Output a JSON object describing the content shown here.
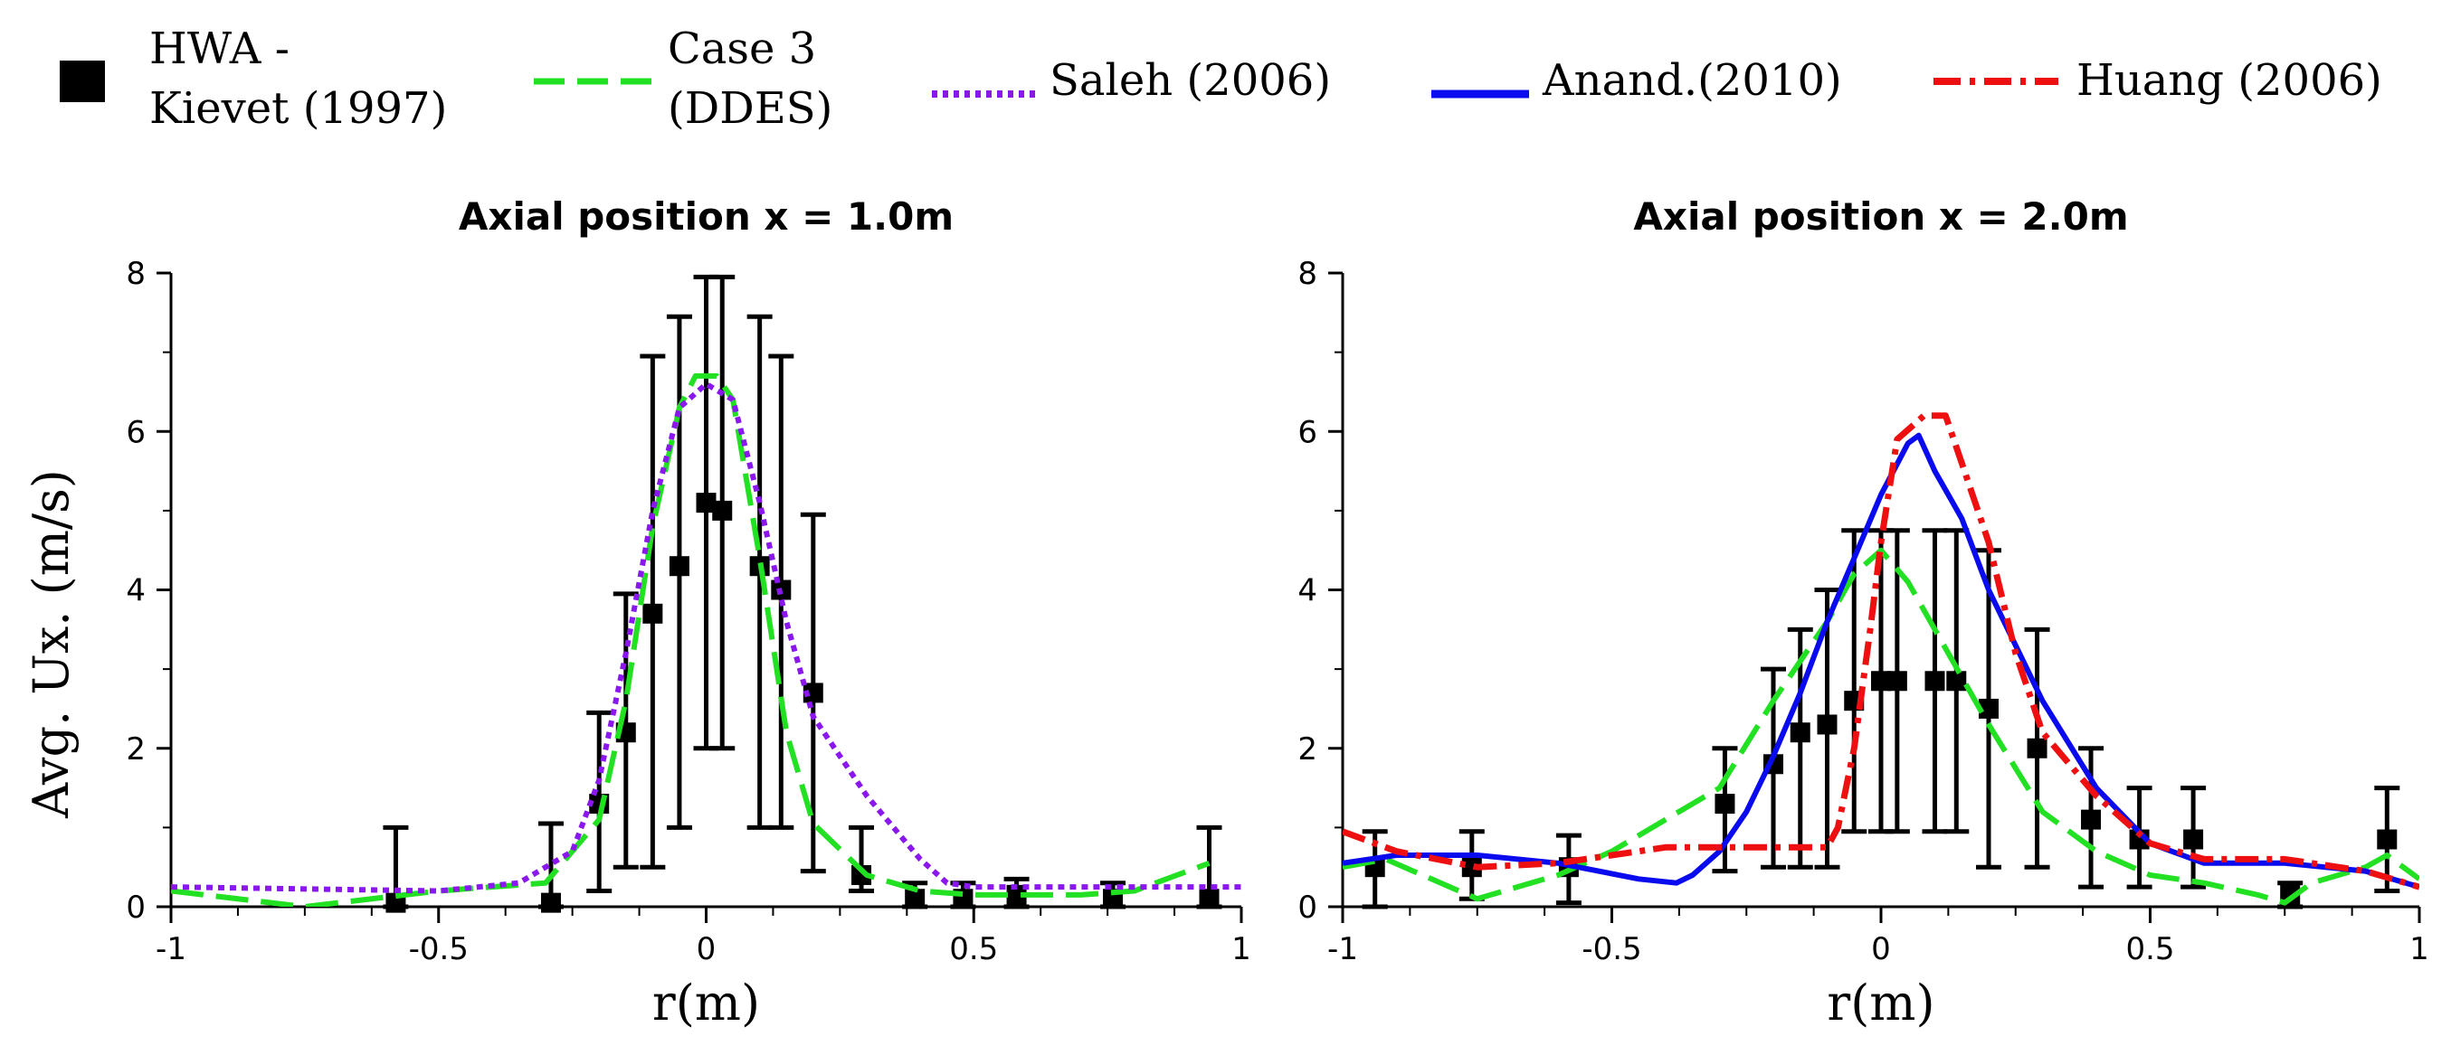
{
  "legend": {
    "hwa_line1": "HWA -",
    "hwa_line2": "Kievet (1997)",
    "case3_line1": "Case 3",
    "case3_line2": "(DDES)",
    "saleh": "Saleh (2006)",
    "anand": "Anand.(2010)",
    "huang": "Huang (2006)"
  },
  "colors": {
    "hwa": "#000000",
    "case3": "#22e022",
    "saleh": "#8a18ee",
    "anand": "#0a0aee",
    "huang": "#ee1010"
  },
  "ylabel": "Avg. Ux. (m/s)",
  "chart_data": [
    {
      "type": "line",
      "title": "Axial position x = 1.0m",
      "xlabel": "r(m)",
      "ylabel": "Avg. Ux. (m/s)",
      "xlim": [
        -1,
        1
      ],
      "ylim": [
        0,
        8
      ],
      "xticks": [
        "-1",
        "-0.5",
        "0",
        "0.5",
        "1"
      ],
      "yticks": [
        "0",
        "2",
        "4",
        "6",
        "8"
      ],
      "series": [
        {
          "name": "HWA - Kievet (1997)",
          "key": "hwa",
          "style": "errorbar",
          "x": [
            -0.58,
            -0.29,
            -0.2,
            -0.15,
            -0.1,
            -0.05,
            0.0,
            0.03,
            0.1,
            0.14,
            0.2,
            0.29,
            0.39,
            0.48,
            0.58,
            0.76,
            0.94
          ],
          "y": [
            0.05,
            0.05,
            1.3,
            2.2,
            3.7,
            4.3,
            5.1,
            5.0,
            4.3,
            4.0,
            2.7,
            0.4,
            0.1,
            0.1,
            0.15,
            0.1,
            0.1
          ],
          "err_low": [
            0.0,
            0.0,
            0.2,
            0.5,
            0.5,
            1.0,
            2.0,
            2.0,
            1.0,
            1.0,
            0.45,
            0.2,
            0.0,
            0.0,
            0.0,
            0.0,
            0.0
          ],
          "err_high": [
            1.0,
            1.05,
            2.45,
            3.95,
            6.95,
            7.45,
            7.95,
            7.95,
            7.45,
            6.95,
            4.95,
            1.0,
            0.3,
            0.3,
            0.35,
            0.3,
            1.0
          ]
        },
        {
          "name": "Case 3 (DDES)",
          "key": "case3",
          "style": "dashed",
          "x": [
            -1,
            -0.75,
            -0.5,
            -0.3,
            -0.2,
            -0.15,
            -0.1,
            -0.05,
            -0.02,
            0.02,
            0.05,
            0.1,
            0.15,
            0.2,
            0.3,
            0.4,
            0.5,
            0.6,
            0.7,
            0.8,
            0.94
          ],
          "y": [
            0.2,
            0.0,
            0.2,
            0.3,
            1.1,
            2.6,
            4.8,
            6.3,
            6.7,
            6.7,
            6.4,
            4.4,
            2.2,
            1.05,
            0.4,
            0.2,
            0.15,
            0.15,
            0.15,
            0.2,
            0.55
          ]
        },
        {
          "name": "Saleh (2006)",
          "key": "saleh",
          "style": "dotted",
          "x": [
            -1,
            -0.5,
            -0.35,
            -0.25,
            -0.2,
            -0.15,
            -0.1,
            -0.05,
            0.0,
            0.05,
            0.1,
            0.15,
            0.2,
            0.3,
            0.4,
            0.45,
            0.5,
            0.7,
            1.0
          ],
          "y": [
            0.25,
            0.2,
            0.3,
            0.7,
            1.6,
            3.2,
            5.0,
            6.3,
            6.6,
            6.4,
            5.1,
            3.6,
            2.4,
            1.4,
            0.6,
            0.3,
            0.25,
            0.25,
            0.25
          ]
        }
      ]
    },
    {
      "type": "line",
      "title": "Axial position x = 2.0m",
      "xlabel": "r(m)",
      "ylabel": "",
      "xlim": [
        -1,
        1
      ],
      "ylim": [
        0,
        8
      ],
      "xticks": [
        "-1",
        "-0.5",
        "0",
        "0.5",
        "1"
      ],
      "yticks": [
        "0",
        "2",
        "4",
        "6",
        "8"
      ],
      "series": [
        {
          "name": "HWA - Kievet (1997)",
          "key": "hwa",
          "style": "errorbar",
          "x": [
            -0.94,
            -0.76,
            -0.58,
            -0.29,
            -0.2,
            -0.15,
            -0.1,
            -0.05,
            0.0,
            0.03,
            0.1,
            0.14,
            0.2,
            0.29,
            0.39,
            0.48,
            0.58,
            0.76,
            0.94
          ],
          "y": [
            0.5,
            0.5,
            0.5,
            1.3,
            1.8,
            2.2,
            2.3,
            2.6,
            2.85,
            2.85,
            2.85,
            2.85,
            2.5,
            2.0,
            1.1,
            0.85,
            0.85,
            0.15,
            0.85
          ],
          "err_low": [
            0.0,
            0.1,
            0.05,
            0.45,
            0.5,
            0.5,
            0.5,
            0.95,
            0.95,
            0.95,
            0.95,
            0.95,
            0.5,
            0.5,
            0.25,
            0.25,
            0.25,
            0.0,
            0.2
          ],
          "err_high": [
            0.95,
            0.95,
            0.9,
            2.0,
            3.0,
            3.5,
            4.0,
            4.75,
            4.75,
            4.75,
            4.75,
            4.75,
            4.5,
            3.5,
            2.0,
            1.5,
            1.5,
            0.3,
            1.5
          ]
        },
        {
          "name": "Case 3 (DDES)",
          "key": "case3",
          "style": "dashed",
          "x": [
            -1,
            -0.92,
            -0.75,
            -0.6,
            -0.5,
            -0.4,
            -0.3,
            -0.2,
            -0.1,
            -0.05,
            0.0,
            0.05,
            0.1,
            0.2,
            0.3,
            0.4,
            0.5,
            0.6,
            0.7,
            0.75,
            0.8,
            0.9,
            0.94,
            1.0
          ],
          "y": [
            0.5,
            0.6,
            0.1,
            0.4,
            0.7,
            1.1,
            1.5,
            2.6,
            3.6,
            4.2,
            4.5,
            4.1,
            3.5,
            2.3,
            1.2,
            0.7,
            0.4,
            0.3,
            0.15,
            0.05,
            0.3,
            0.5,
            0.65,
            0.35
          ]
        },
        {
          "name": "Anand.(2010)",
          "key": "anand",
          "style": "solid",
          "x": [
            -1,
            -0.9,
            -0.75,
            -0.6,
            -0.45,
            -0.38,
            -0.35,
            -0.3,
            -0.25,
            -0.2,
            -0.15,
            -0.1,
            -0.05,
            0.0,
            0.05,
            0.07,
            0.1,
            0.15,
            0.2,
            0.3,
            0.4,
            0.5,
            0.6,
            0.75,
            0.9,
            1.0
          ],
          "y": [
            0.55,
            0.65,
            0.65,
            0.55,
            0.35,
            0.3,
            0.4,
            0.7,
            1.2,
            1.9,
            2.7,
            3.6,
            4.4,
            5.2,
            5.85,
            5.95,
            5.5,
            4.9,
            4.0,
            2.6,
            1.5,
            0.8,
            0.55,
            0.55,
            0.45,
            0.25
          ]
        },
        {
          "name": "Huang (2006)",
          "key": "huang",
          "style": "dashdot",
          "x": [
            -1,
            -0.9,
            -0.75,
            -0.6,
            -0.5,
            -0.4,
            -0.3,
            -0.2,
            -0.1,
            -0.08,
            -0.05,
            -0.02,
            0.0,
            0.03,
            0.08,
            0.12,
            0.15,
            0.2,
            0.25,
            0.3,
            0.4,
            0.5,
            0.6,
            0.75,
            0.9,
            1.0
          ],
          "y": [
            0.95,
            0.7,
            0.5,
            0.55,
            0.65,
            0.75,
            0.75,
            0.75,
            0.75,
            1.0,
            2.0,
            3.5,
            4.6,
            5.9,
            6.2,
            6.2,
            5.6,
            4.6,
            3.2,
            2.2,
            1.4,
            0.8,
            0.6,
            0.6,
            0.45,
            0.25
          ]
        }
      ]
    }
  ]
}
